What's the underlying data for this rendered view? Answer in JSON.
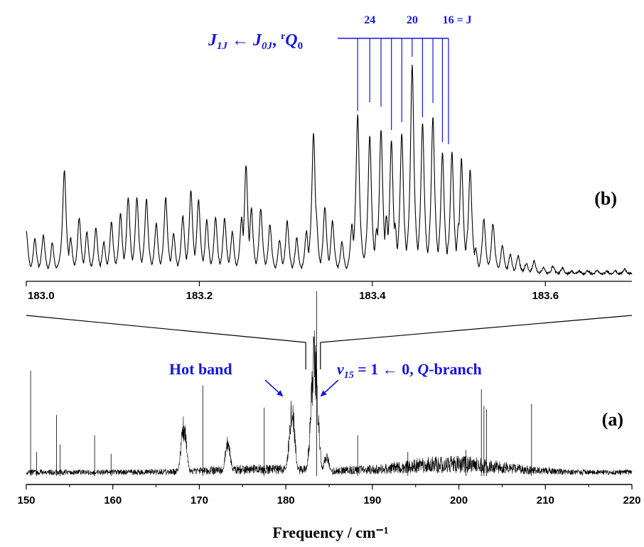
{
  "chart_data": [
    {
      "panel": "(b)",
      "type": "line",
      "title": "",
      "xlabel": "",
      "ylabel": "",
      "xlim": [
        183.0,
        183.7
      ],
      "xticks": [
        "183.0",
        "183.2",
        "183.4",
        "183.6"
      ],
      "xtick_values": [
        183.0,
        183.2,
        183.4,
        183.6
      ],
      "grid": false,
      "annotation": {
        "label_parts": {
          "j1": "J",
          "j1_sub": "1J",
          "arrow": " ← ",
          "j0": "J",
          "j0_sub": "0J",
          "sep": ", ",
          "sup": "r",
          "q": "Q",
          "q_sub": "0"
        },
        "assignment_labels": [
          "24",
          "20",
          "16 = J"
        ],
        "assignment_label_x": [
          183.397,
          183.446,
          183.498
        ],
        "marker_x": [
          183.383,
          183.397,
          183.41,
          183.422,
          183.434,
          183.446,
          183.458,
          183.47,
          183.481,
          183.488
        ]
      },
      "peaks": [
        {
          "x": 183.383,
          "y": 0.76
        },
        {
          "x": 183.397,
          "y": 0.66
        },
        {
          "x": 183.41,
          "y": 0.69
        },
        {
          "x": 183.422,
          "y": 0.64
        },
        {
          "x": 183.434,
          "y": 0.67
        },
        {
          "x": 183.446,
          "y": 1.0
        },
        {
          "x": 183.458,
          "y": 0.72
        },
        {
          "x": 183.47,
          "y": 0.75
        },
        {
          "x": 183.481,
          "y": 0.58
        },
        {
          "x": 183.492,
          "y": 0.58
        },
        {
          "x": 183.503,
          "y": 0.55
        },
        {
          "x": 183.513,
          "y": 0.5
        },
        {
          "x": 183.332,
          "y": 0.67
        },
        {
          "x": 183.044,
          "y": 0.5
        },
        {
          "x": 183.254,
          "y": 0.52
        }
      ]
    },
    {
      "panel": "(a)",
      "type": "line",
      "title": "",
      "xlabel": "Frequency / cm⁻¹",
      "ylabel": "",
      "xlim": [
        150,
        220
      ],
      "xticks": [
        "150",
        "160",
        "170",
        "180",
        "190",
        "200",
        "210",
        "220"
      ],
      "xtick_values": [
        150,
        160,
        170,
        180,
        190,
        200,
        210,
        220
      ],
      "grid": false,
      "annotations": {
        "hot_band": "Hot band",
        "q_branch": {
          "nu": "ν",
          "nu_sub": "15",
          "rest": " = 1 ← 0, ",
          "q": "Q",
          "suffix": "-branch"
        }
      },
      "zoom_window": [
        182.3,
        184.0
      ],
      "features": [
        {
          "x": 168.2,
          "height": 0.33
        },
        {
          "x": 173.3,
          "height": 0.22
        },
        {
          "x": 180.7,
          "height": 0.46
        },
        {
          "x": 183.3,
          "height": 0.8
        },
        {
          "x": 184.7,
          "height": 0.13
        }
      ],
      "sticks": [
        {
          "x": 150.5,
          "height": 0.57
        },
        {
          "x": 151.2,
          "height": 0.13
        },
        {
          "x": 153.5,
          "height": 0.33
        },
        {
          "x": 153.9,
          "height": 0.17
        },
        {
          "x": 157.9,
          "height": 0.22
        },
        {
          "x": 159.8,
          "height": 0.12
        },
        {
          "x": 170.4,
          "height": 0.49
        },
        {
          "x": 177.5,
          "height": 0.37
        },
        {
          "x": 183.55,
          "height": 1.0
        },
        {
          "x": 188.3,
          "height": 0.22
        },
        {
          "x": 194.1,
          "height": 0.13
        },
        {
          "x": 202.6,
          "height": 0.47
        },
        {
          "x": 202.9,
          "height": 0.38
        },
        {
          "x": 203.2,
          "height": 0.36
        },
        {
          "x": 208.4,
          "height": 0.39
        },
        {
          "x": 200.8,
          "height": 0.14
        }
      ]
    }
  ],
  "panel_labels": [
    "(b)",
    "(a)"
  ]
}
